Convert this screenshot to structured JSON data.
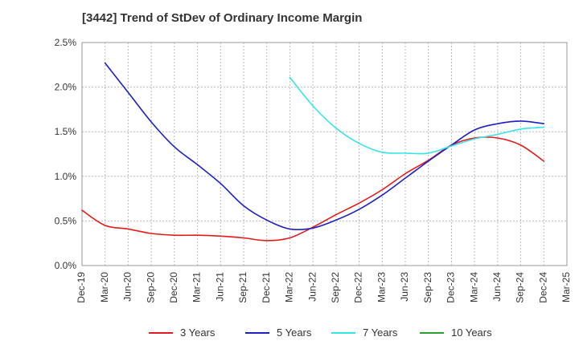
{
  "chart_data": {
    "type": "line",
    "title": "[3442]  Trend of StDev of Ordinary Income Margin",
    "xlabel": "",
    "ylabel": "",
    "x": [
      "Dec-19",
      "Mar-20",
      "Jun-20",
      "Sep-20",
      "Dec-20",
      "Mar-21",
      "Jun-21",
      "Sep-21",
      "Dec-21",
      "Mar-22",
      "Jun-22",
      "Sep-22",
      "Dec-22",
      "Mar-23",
      "Jun-23",
      "Sep-23",
      "Dec-23",
      "Mar-24",
      "Jun-24",
      "Sep-24",
      "Dec-24",
      "Mar-25"
    ],
    "ylim": [
      0,
      2.5
    ],
    "yticks": [
      "0.0%",
      "0.5%",
      "1.0%",
      "1.5%",
      "2.0%",
      "2.5%"
    ],
    "grid": true,
    "legend_position": "bottom",
    "series": [
      {
        "name": "3 Years",
        "color": "#e31a1c",
        "values": [
          0.62,
          0.45,
          0.41,
          0.36,
          0.34,
          0.34,
          0.33,
          0.31,
          0.28,
          0.31,
          0.43,
          0.57,
          0.7,
          0.85,
          1.03,
          1.18,
          1.35,
          1.43,
          1.43,
          1.35,
          1.17,
          null
        ]
      },
      {
        "name": "5 Years",
        "color": "#1f1fbf",
        "values": [
          null,
          2.27,
          1.94,
          1.61,
          1.33,
          1.13,
          0.92,
          0.67,
          0.51,
          0.41,
          0.42,
          0.51,
          0.63,
          0.79,
          0.98,
          1.17,
          1.35,
          1.52,
          1.59,
          1.62,
          1.59,
          null
        ]
      },
      {
        "name": "7 Years",
        "color": "#33e6e6",
        "values": [
          null,
          null,
          null,
          null,
          null,
          null,
          null,
          null,
          null,
          2.11,
          1.79,
          1.54,
          1.37,
          1.27,
          1.26,
          1.26,
          1.34,
          1.42,
          1.47,
          1.53,
          1.55,
          null
        ]
      },
      {
        "name": "10 Years",
        "color": "#2ca02c",
        "values": [
          null,
          null,
          null,
          null,
          null,
          null,
          null,
          null,
          null,
          null,
          null,
          null,
          null,
          null,
          null,
          null,
          null,
          null,
          null,
          null,
          null,
          null
        ]
      }
    ]
  }
}
